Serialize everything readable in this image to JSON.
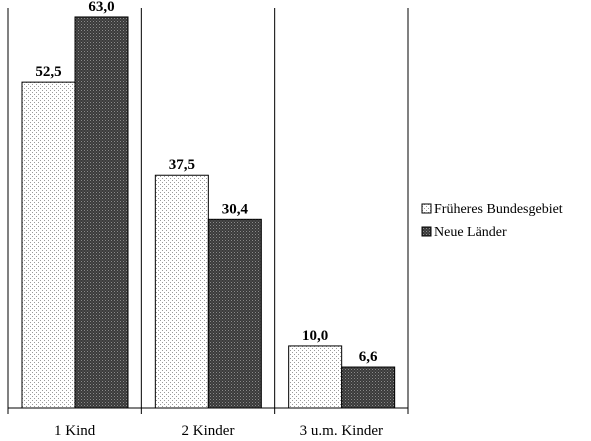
{
  "chart_data": {
    "type": "bar",
    "categories": [
      "1 Kind",
      "2 Kinder",
      "3 u.m. Kinder"
    ],
    "series": [
      {
        "name": "Früheres Bundesgebiet",
        "values": [
          52.5,
          37.5,
          10.0
        ],
        "labels": [
          "52,5",
          "37,5",
          "10,0"
        ]
      },
      {
        "name": "Neue Länder",
        "values": [
          63.0,
          30.4,
          6.6
        ],
        "labels": [
          "63,0",
          "30,4",
          "6,6"
        ]
      }
    ],
    "ylim": [
      0,
      70
    ],
    "legend_position": "right",
    "grid": false
  }
}
